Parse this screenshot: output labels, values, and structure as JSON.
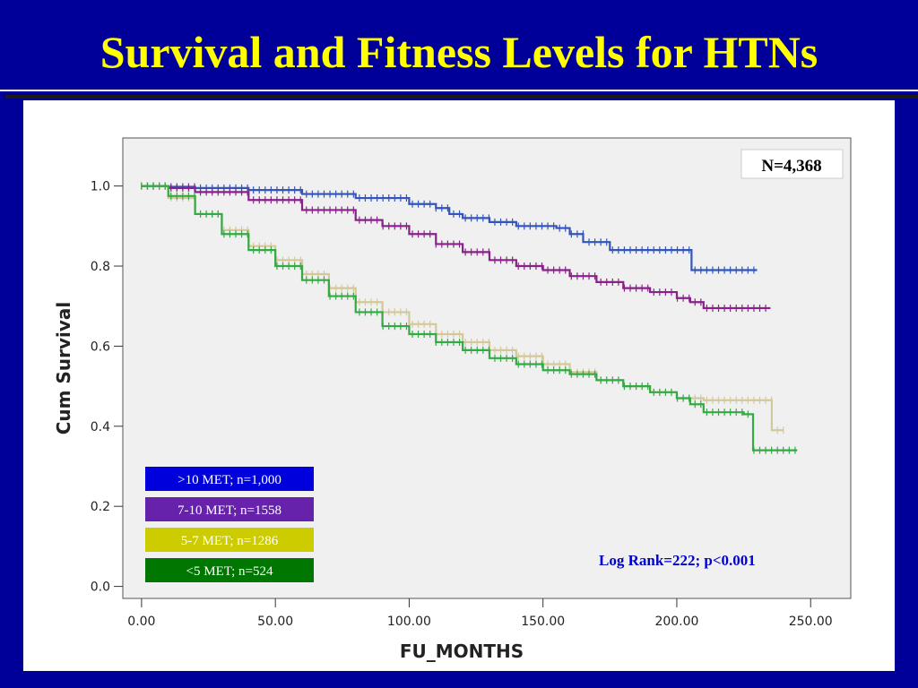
{
  "slide": {
    "title": "Survival and Fitness Levels for HTNs",
    "background_color": "#000099",
    "title_color": "#ffff00"
  },
  "chart_data": {
    "type": "line",
    "step": true,
    "xlabel": "FU_MONTHS",
    "ylabel": "Cum Survival",
    "xlim": [
      -7,
      265
    ],
    "ylim": [
      -0.03,
      1.12
    ],
    "xticks": [
      0,
      50,
      100,
      150,
      200,
      250
    ],
    "xtick_labels": [
      "0.00",
      "50.00",
      "100.00",
      "150.00",
      "200.00",
      "250.00"
    ],
    "yticks": [
      0,
      0.2,
      0.4,
      0.6,
      0.8,
      1.0
    ],
    "ytick_labels": [
      "0.0",
      "0.2",
      "0.4",
      "0.6",
      "0.8",
      "1.0"
    ],
    "grid": false,
    "plot_background": "#f0f0f0",
    "annotation_n": "N=4,368",
    "annotation_logrank": "Log Rank=222; p<0.001",
    "annotation_logrank_color": "#0000cc",
    "legend_position": "bottom-left",
    "series": [
      {
        "name": ">10 MET; n=1,000",
        "color": "#3355bb",
        "legend_bg": "#0000dd",
        "legend_text_color": "#ffffff",
        "points": [
          [
            0,
            1.0
          ],
          [
            10,
            0.998
          ],
          [
            20,
            0.995
          ],
          [
            40,
            0.99
          ],
          [
            60,
            0.98
          ],
          [
            80,
            0.97
          ],
          [
            100,
            0.955
          ],
          [
            110,
            0.945
          ],
          [
            115,
            0.93
          ],
          [
            120,
            0.92
          ],
          [
            130,
            0.91
          ],
          [
            140,
            0.9
          ],
          [
            150,
            0.9
          ],
          [
            155,
            0.895
          ],
          [
            160,
            0.88
          ],
          [
            165,
            0.86
          ],
          [
            175,
            0.84
          ],
          [
            180,
            0.84
          ],
          [
            185,
            0.84
          ],
          [
            190,
            0.84
          ],
          [
            200,
            0.84
          ],
          [
            205,
            0.84
          ],
          [
            205.5,
            0.79
          ],
          [
            230,
            0.79
          ]
        ]
      },
      {
        "name": "7-10 MET; n=1558",
        "color": "#882288",
        "legend_bg": "#6622aa",
        "legend_text_color": "#ffffff",
        "points": [
          [
            0,
            1.0
          ],
          [
            10,
            0.995
          ],
          [
            20,
            0.985
          ],
          [
            40,
            0.965
          ],
          [
            60,
            0.94
          ],
          [
            80,
            0.915
          ],
          [
            90,
            0.9
          ],
          [
            100,
            0.88
          ],
          [
            110,
            0.855
          ],
          [
            120,
            0.835
          ],
          [
            130,
            0.815
          ],
          [
            140,
            0.8
          ],
          [
            150,
            0.79
          ],
          [
            160,
            0.775
          ],
          [
            170,
            0.76
          ],
          [
            180,
            0.745
          ],
          [
            190,
            0.735
          ],
          [
            200,
            0.72
          ],
          [
            205,
            0.71
          ],
          [
            210,
            0.695
          ],
          [
            235,
            0.695
          ]
        ]
      },
      {
        "name": "5-7 MET; n=1286",
        "color": "#d4c89a",
        "legend_bg": "#cccc00",
        "legend_text_color": "#ffffff",
        "points": [
          [
            0,
            1.0
          ],
          [
            10,
            0.97
          ],
          [
            20,
            0.93
          ],
          [
            30,
            0.89
          ],
          [
            40,
            0.85
          ],
          [
            50,
            0.815
          ],
          [
            60,
            0.78
          ],
          [
            70,
            0.745
          ],
          [
            80,
            0.71
          ],
          [
            90,
            0.685
          ],
          [
            100,
            0.655
          ],
          [
            110,
            0.63
          ],
          [
            120,
            0.61
          ],
          [
            130,
            0.59
          ],
          [
            140,
            0.575
          ],
          [
            150,
            0.555
          ],
          [
            160,
            0.535
          ],
          [
            170,
            0.515
          ],
          [
            180,
            0.5
          ],
          [
            190,
            0.485
          ],
          [
            200,
            0.47
          ],
          [
            210,
            0.465
          ],
          [
            225,
            0.465
          ],
          [
            235,
            0.465
          ],
          [
            235.5,
            0.39
          ],
          [
            240,
            0.39
          ]
        ]
      },
      {
        "name": "<5 MET; n=524",
        "color": "#33aa44",
        "legend_bg": "#007700",
        "legend_text_color": "#ffffff",
        "points": [
          [
            0,
            1.0
          ],
          [
            10,
            0.975
          ],
          [
            20,
            0.93
          ],
          [
            30,
            0.88
          ],
          [
            40,
            0.84
          ],
          [
            50,
            0.8
          ],
          [
            60,
            0.765
          ],
          [
            70,
            0.725
          ],
          [
            80,
            0.685
          ],
          [
            90,
            0.65
          ],
          [
            100,
            0.63
          ],
          [
            110,
            0.61
          ],
          [
            120,
            0.59
          ],
          [
            130,
            0.57
          ],
          [
            140,
            0.555
          ],
          [
            150,
            0.54
          ],
          [
            160,
            0.53
          ],
          [
            170,
            0.515
          ],
          [
            180,
            0.5
          ],
          [
            190,
            0.485
          ],
          [
            200,
            0.47
          ],
          [
            205,
            0.455
          ],
          [
            210,
            0.435
          ],
          [
            225,
            0.43
          ],
          [
            228,
            0.43
          ],
          [
            228.5,
            0.34
          ],
          [
            245,
            0.34
          ]
        ]
      }
    ]
  }
}
